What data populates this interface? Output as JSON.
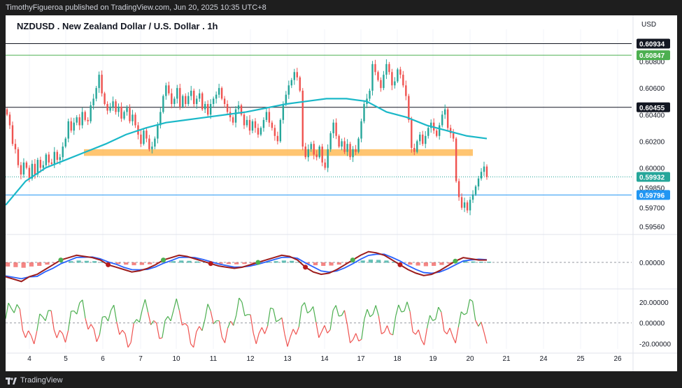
{
  "header": {
    "publisher_line": "TimothyFigueroa published on TradingView.com, Jun 20, 2025 10:35 UTC+8"
  },
  "footer": {
    "brand": "TradingView"
  },
  "chart_data": {
    "type": "candlestick",
    "title": "NZDUSD . New Zealand Dollar / U.S. Dollar . 1h",
    "currency": "USD",
    "x_tick_labels": [
      "4",
      "5",
      "6",
      "7",
      "10",
      "11",
      "12",
      "13",
      "14",
      "17",
      "18",
      "19",
      "20",
      "21",
      "24",
      "25",
      "26"
    ],
    "y_tick_labels": [
      "0.60800",
      "0.60600",
      "0.60400",
      "0.60200",
      "0.60000",
      "0.59850",
      "0.59700",
      "0.59560"
    ],
    "price_badges": [
      {
        "value": "0.60934",
        "bg": "#131722",
        "fg": "#ffffff"
      },
      {
        "value": "0.60847",
        "bg": "#4caf50",
        "fg": "#ffffff"
      },
      {
        "value": "0.60455",
        "bg": "#131722",
        "fg": "#ffffff"
      },
      {
        "value": "0.59932",
        "bg": "#26a69a",
        "fg": "#ffffff"
      },
      {
        "value": "0.59796",
        "bg": "#2196f3",
        "fg": "#ffffff"
      }
    ],
    "horizontal_lines": [
      {
        "price": 0.60934,
        "color": "#131722"
      },
      {
        "price": 0.60847,
        "color": "#4caf50"
      },
      {
        "price": 0.60455,
        "color": "#131722"
      },
      {
        "price": 0.59796,
        "color": "#2196f3"
      }
    ],
    "zone": {
      "low": 0.6009,
      "high": 0.6014,
      "from_day": 5.5,
      "to_day": 20.1,
      "color": "#ffb74d"
    },
    "price_ylim": [
      0.5952,
      0.6101
    ],
    "candles_close": [
      0.604,
      0.6032,
      0.6018,
      0.6014,
      0.6002,
      0.5995,
      0.6004,
      0.6,
      0.5992,
      0.6003,
      0.5995,
      0.6006,
      0.6,
      0.6002,
      0.601,
      0.6004,
      0.6003,
      0.6012,
      0.6006,
      0.6008,
      0.6016,
      0.6022,
      0.6035,
      0.6028,
      0.6034,
      0.6038,
      0.6032,
      0.6042,
      0.6036,
      0.6035,
      0.6047,
      0.6052,
      0.606,
      0.607,
      0.6056,
      0.6048,
      0.6043,
      0.6046,
      0.605,
      0.6042,
      0.6046,
      0.6037,
      0.6042,
      0.6045,
      0.6035,
      0.604,
      0.6032,
      0.6025,
      0.6018,
      0.6028,
      0.6022,
      0.6014,
      0.6016,
      0.6022,
      0.6032,
      0.6042,
      0.6054,
      0.6062,
      0.6056,
      0.6048,
      0.6052,
      0.606,
      0.6046,
      0.6054,
      0.6048,
      0.6054,
      0.6058,
      0.6048,
      0.6052,
      0.6056,
      0.6044,
      0.6048,
      0.604,
      0.6048,
      0.6052,
      0.6055,
      0.606,
      0.6052,
      0.6048,
      0.6042,
      0.6038,
      0.6034,
      0.6044,
      0.6047,
      0.604,
      0.6032,
      0.6036,
      0.6028,
      0.6035,
      0.603,
      0.6025,
      0.603,
      0.6036,
      0.6042,
      0.6034,
      0.603,
      0.6024,
      0.602,
      0.6036,
      0.6048,
      0.6055,
      0.6062,
      0.6066,
      0.6072,
      0.6068,
      0.6058,
      0.6016,
      0.6008,
      0.6014,
      0.6018,
      0.601,
      0.6008,
      0.6016,
      0.6004,
      0.6,
      0.6014,
      0.6026,
      0.6034,
      0.6024,
      0.6016,
      0.602,
      0.6012,
      0.6018,
      0.6008,
      0.6014,
      0.6012,
      0.6022,
      0.6035,
      0.6048,
      0.6052,
      0.6058,
      0.6078,
      0.6072,
      0.6066,
      0.606,
      0.607,
      0.6078,
      0.6072,
      0.6062,
      0.6065,
      0.6074,
      0.607,
      0.6062,
      0.6054,
      0.6036,
      0.6015,
      0.6012,
      0.602,
      0.6025,
      0.6018,
      0.6024,
      0.603,
      0.6034,
      0.6028,
      0.6024,
      0.6032,
      0.604,
      0.6044,
      0.603,
      0.6026,
      0.6022,
      0.599,
      0.5978,
      0.597,
      0.5974,
      0.5968,
      0.5976,
      0.598,
      0.5986,
      0.5992,
      0.5997,
      0.6001,
      0.5993
    ],
    "ema_points": [
      [
        0,
        0.5972
      ],
      [
        20,
        0.599
      ],
      [
        40,
        0.6
      ],
      [
        60,
        0.6006
      ],
      [
        80,
        0.6012
      ],
      [
        100,
        0.6018
      ],
      [
        120,
        0.6025
      ],
      [
        140,
        0.603
      ],
      [
        160,
        0.6034
      ],
      [
        180,
        0.6036
      ],
      [
        200,
        0.6038
      ],
      [
        220,
        0.604
      ],
      [
        240,
        0.6042
      ],
      [
        260,
        0.6045
      ],
      [
        280,
        0.6048
      ],
      [
        300,
        0.605
      ],
      [
        320,
        0.6052
      ],
      [
        340,
        0.6052
      ],
      [
        360,
        0.605
      ],
      [
        380,
        0.6042
      ],
      [
        400,
        0.6038
      ],
      [
        420,
        0.6032
      ],
      [
        440,
        0.6028
      ],
      [
        460,
        0.6024
      ],
      [
        480,
        0.6022
      ]
    ],
    "macd_range": [
      -1,
      1
    ],
    "macd_hist": [
      -0.6,
      -0.7,
      -0.8,
      -0.6,
      -0.5,
      -0.3,
      -0.1,
      0.1,
      0.2,
      0.3,
      0.25,
      0.2,
      0.1,
      -0.1,
      -0.2,
      -0.3,
      -0.4,
      -0.35,
      -0.25,
      -0.1,
      0.1,
      0.2,
      0.3,
      0.25,
      0.15,
      0.05,
      -0.05,
      -0.15,
      -0.2,
      -0.25,
      -0.2,
      -0.1,
      0.0,
      0.1,
      0.2,
      0.3,
      0.25,
      0.1,
      -0.2,
      -0.4,
      -0.5,
      -0.45,
      -0.3,
      -0.1,
      0.1,
      0.3,
      0.45,
      0.4,
      0.3,
      0.1,
      -0.1,
      -0.3,
      -0.45,
      -0.55,
      -0.5,
      -0.35,
      -0.15,
      0.05,
      0.2,
      0.15,
      0.1,
      0.1
    ],
    "macd_yticks": [
      "0.00000"
    ],
    "osc_range": [
      -25,
      30
    ],
    "osc_yticks": [
      "20.00000",
      "0.00000",
      "-20.00000"
    ]
  }
}
